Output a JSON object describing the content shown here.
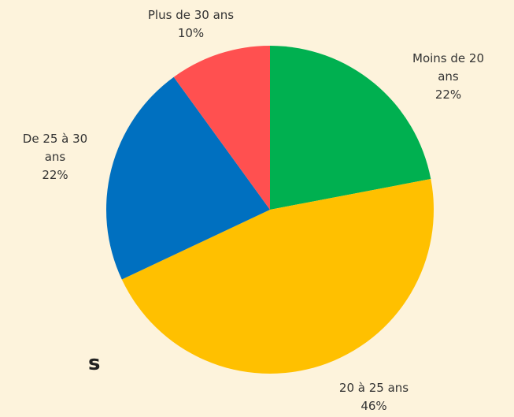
{
  "chart_data": {
    "type": "pie",
    "categories": [
      "Moins de 20 ans",
      "20 à 25 ans",
      "De 25 à 30 ans",
      "Plus de 30 ans"
    ],
    "values": [
      22,
      46,
      22,
      10
    ],
    "value_labels": [
      "22%",
      "46%",
      "22%",
      "10%"
    ],
    "colors": [
      "#00b050",
      "#ffc000",
      "#0070c0",
      "#ff5050"
    ],
    "annotation": "s"
  }
}
